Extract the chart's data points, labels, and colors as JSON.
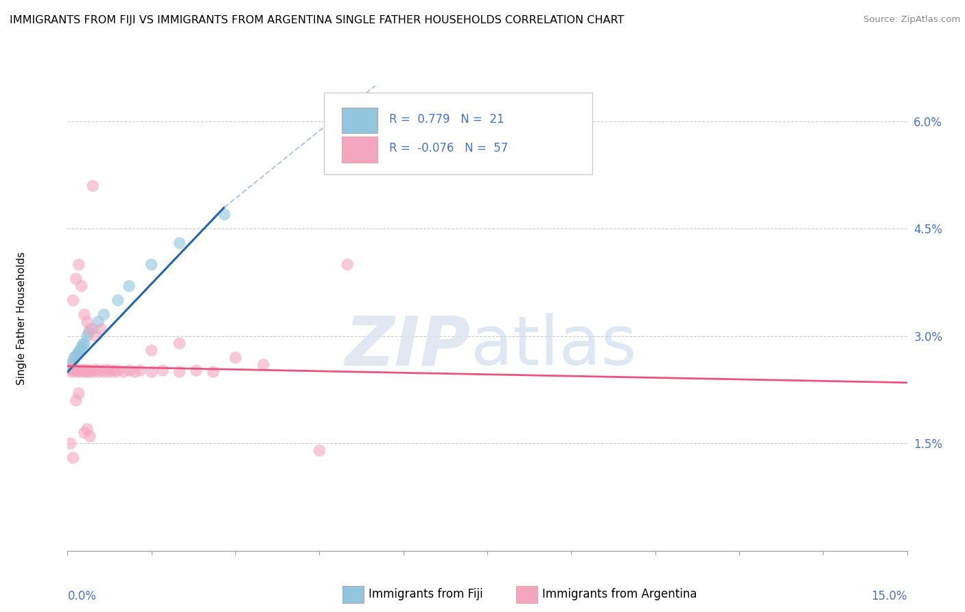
{
  "title": "IMMIGRANTS FROM FIJI VS IMMIGRANTS FROM ARGENTINA SINGLE FATHER HOUSEHOLDS CORRELATION CHART",
  "source": "Source: ZipAtlas.com",
  "ylabel": "Single Father Households",
  "legend_fiji": {
    "R": "0.779",
    "N": "21"
  },
  "legend_argentina": {
    "R": "-0.076",
    "N": "57"
  },
  "fiji_color": "#92c5de",
  "argentina_color": "#f4a6c0",
  "fiji_line_color": "#2166ac",
  "argentina_line_color": "#e8547a",
  "fiji_dashed_color": "#aec8e0",
  "xlim": [
    0.0,
    15.0
  ],
  "ylim": [
    0.0,
    6.5
  ],
  "ytick_vals": [
    1.5,
    3.0,
    4.5,
    6.0
  ],
  "fiji_points": [
    [
      0.05,
      2.55
    ],
    [
      0.08,
      2.6
    ],
    [
      0.1,
      2.65
    ],
    [
      0.12,
      2.7
    ],
    [
      0.15,
      2.72
    ],
    [
      0.18,
      2.75
    ],
    [
      0.2,
      2.78
    ],
    [
      0.22,
      2.8
    ],
    [
      0.25,
      2.85
    ],
    [
      0.28,
      2.88
    ],
    [
      0.3,
      2.9
    ],
    [
      0.35,
      3.0
    ],
    [
      0.38,
      3.05
    ],
    [
      0.45,
      3.1
    ],
    [
      0.55,
      3.2
    ],
    [
      0.65,
      3.3
    ],
    [
      0.9,
      3.5
    ],
    [
      1.1,
      3.7
    ],
    [
      1.5,
      4.0
    ],
    [
      2.0,
      4.3
    ],
    [
      2.8,
      4.7
    ]
  ],
  "argentina_points": [
    [
      0.05,
      2.55
    ],
    [
      0.08,
      2.5
    ],
    [
      0.1,
      2.52
    ],
    [
      0.12,
      2.54
    ],
    [
      0.15,
      2.53
    ],
    [
      0.18,
      2.5
    ],
    [
      0.2,
      2.52
    ],
    [
      0.22,
      2.51
    ],
    [
      0.25,
      2.53
    ],
    [
      0.28,
      2.5
    ],
    [
      0.3,
      2.52
    ],
    [
      0.32,
      2.5
    ],
    [
      0.35,
      2.53
    ],
    [
      0.38,
      2.5
    ],
    [
      0.4,
      2.52
    ],
    [
      0.45,
      2.5
    ],
    [
      0.5,
      2.53
    ],
    [
      0.55,
      2.5
    ],
    [
      0.6,
      2.52
    ],
    [
      0.65,
      2.5
    ],
    [
      0.7,
      2.53
    ],
    [
      0.75,
      2.5
    ],
    [
      0.8,
      2.52
    ],
    [
      0.85,
      2.5
    ],
    [
      0.9,
      2.52
    ],
    [
      1.0,
      2.5
    ],
    [
      1.1,
      2.52
    ],
    [
      1.2,
      2.5
    ],
    [
      1.3,
      2.52
    ],
    [
      1.5,
      2.5
    ],
    [
      1.7,
      2.52
    ],
    [
      2.0,
      2.5
    ],
    [
      2.3,
      2.52
    ],
    [
      2.6,
      2.5
    ],
    [
      0.1,
      3.5
    ],
    [
      0.15,
      3.8
    ],
    [
      0.2,
      4.0
    ],
    [
      0.25,
      3.7
    ],
    [
      0.3,
      3.3
    ],
    [
      0.35,
      3.2
    ],
    [
      0.4,
      3.1
    ],
    [
      0.5,
      3.0
    ],
    [
      0.6,
      3.1
    ],
    [
      0.45,
      5.1
    ],
    [
      5.0,
      4.0
    ],
    [
      0.05,
      1.5
    ],
    [
      0.1,
      1.3
    ],
    [
      0.15,
      2.1
    ],
    [
      0.2,
      2.2
    ],
    [
      1.5,
      2.8
    ],
    [
      2.0,
      2.9
    ],
    [
      3.0,
      2.7
    ],
    [
      3.5,
      2.6
    ],
    [
      4.5,
      1.4
    ],
    [
      0.3,
      1.65
    ],
    [
      0.35,
      1.7
    ],
    [
      0.4,
      1.6
    ]
  ],
  "fiji_line_x_start": 0.0,
  "fiji_line_x_solid_end": 2.8,
  "fiji_line_x_dashed_end": 5.5,
  "fiji_line_y_start": 2.5,
  "fiji_line_y_solid_end": 4.8,
  "fiji_line_y_dashed_end": 6.5,
  "arg_line_x_start": 0.0,
  "arg_line_x_end": 15.0,
  "arg_line_y_start": 2.58,
  "arg_line_y_end": 2.35
}
